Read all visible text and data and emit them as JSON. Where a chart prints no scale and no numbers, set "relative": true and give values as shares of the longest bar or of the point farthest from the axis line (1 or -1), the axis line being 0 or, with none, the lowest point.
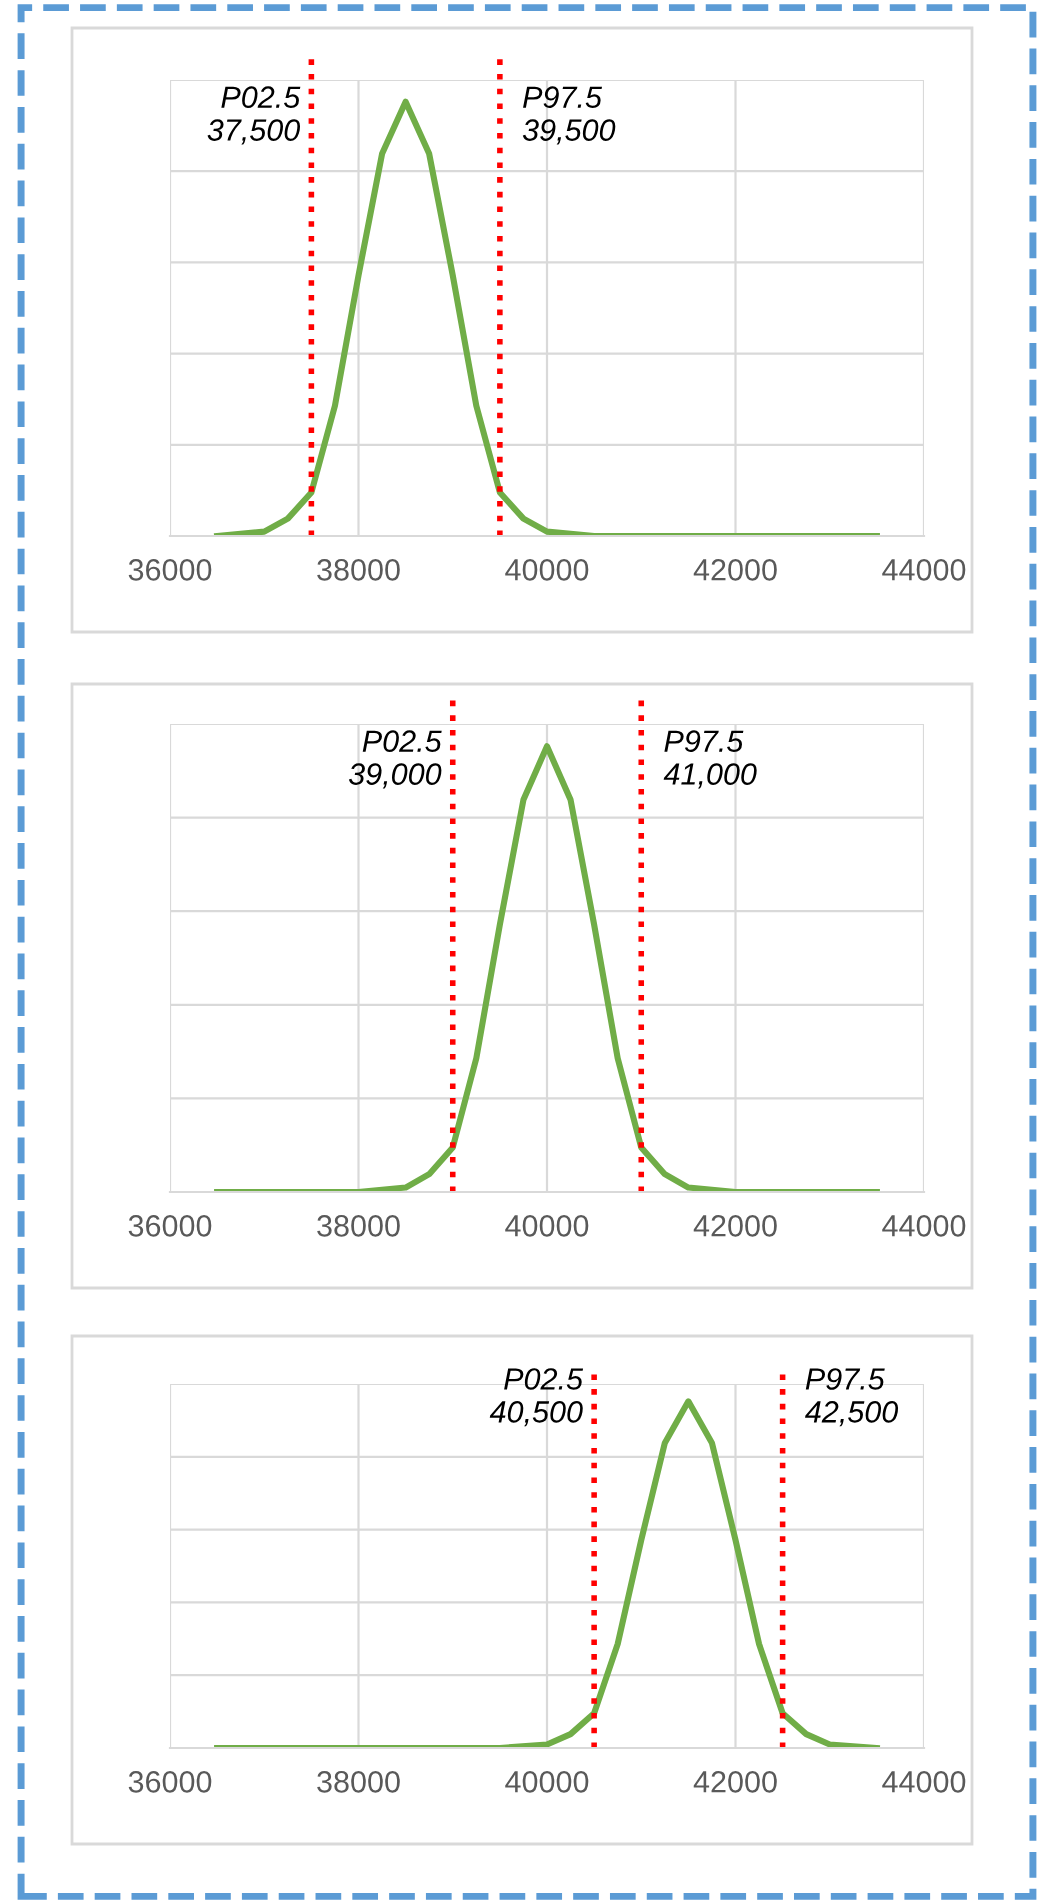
{
  "chart_data": [
    {
      "type": "line",
      "relative": true,
      "x": [
        36500,
        37000,
        37250,
        37500,
        37750,
        38000,
        38250,
        38500,
        38750,
        39000,
        39250,
        39500,
        39750,
        40000,
        40500,
        41000,
        42000,
        43000,
        43500
      ],
      "series": [
        {
          "color": "#70ad47",
          "values": [
            0,
            0.01,
            0.04,
            0.1,
            0.3,
            0.6,
            0.88,
            1,
            0.88,
            0.6,
            0.3,
            0.1,
            0.04,
            0.01,
            0,
            0,
            0,
            0,
            0
          ]
        }
      ],
      "xlim": [
        36000,
        44000
      ],
      "xticks": [
        36000,
        38000,
        40000,
        42000,
        44000
      ],
      "grid": true,
      "tick_labels": "x",
      "ref_lines": [
        {
          "axis": "x",
          "value": 37500,
          "label": "P02.5\n37,500",
          "color": "#ff0000",
          "line_style": "dotted"
        },
        {
          "axis": "x",
          "value": 39500,
          "label": "P97.5\n39,500",
          "color": "#ff0000",
          "line_style": "dotted"
        }
      ]
    },
    {
      "type": "line",
      "relative": true,
      "x": [
        36500,
        37000,
        38000,
        38500,
        38750,
        39000,
        39250,
        39500,
        39750,
        40000,
        40250,
        40500,
        40750,
        41000,
        41250,
        41500,
        42000,
        43000,
        43500
      ],
      "series": [
        {
          "color": "#70ad47",
          "values": [
            0,
            0,
            0,
            0.01,
            0.04,
            0.1,
            0.3,
            0.6,
            0.88,
            1,
            0.88,
            0.6,
            0.3,
            0.1,
            0.04,
            0.01,
            0,
            0,
            0
          ]
        }
      ],
      "xlim": [
        36000,
        44000
      ],
      "xticks": [
        36000,
        38000,
        40000,
        42000,
        44000
      ],
      "grid": true,
      "tick_labels": "x",
      "ref_lines": [
        {
          "axis": "x",
          "value": 39000,
          "label": "P02.5\n39,000",
          "color": "#ff0000",
          "line_style": "dotted"
        },
        {
          "axis": "x",
          "value": 41000,
          "label": "P97.5\n41,000",
          "color": "#ff0000",
          "line_style": "dotted"
        }
      ]
    },
    {
      "type": "line",
      "relative": true,
      "x": [
        36500,
        37000,
        38000,
        39000,
        39500,
        40000,
        40250,
        40500,
        40750,
        41000,
        41250,
        41500,
        41750,
        42000,
        42250,
        42500,
        42750,
        43000,
        43500
      ],
      "series": [
        {
          "color": "#70ad47",
          "values": [
            0,
            0,
            0,
            0,
            0,
            0.01,
            0.04,
            0.1,
            0.3,
            0.6,
            0.88,
            1,
            0.88,
            0.6,
            0.3,
            0.1,
            0.04,
            0.01,
            0
          ]
        }
      ],
      "xlim": [
        36000,
        44000
      ],
      "xticks": [
        36000,
        38000,
        40000,
        42000,
        44000
      ],
      "grid": true,
      "tick_labels": "x",
      "ref_lines": [
        {
          "axis": "x",
          "value": 40500,
          "label": "P02.5\n40,500",
          "color": "#ff0000",
          "line_style": "dotted"
        },
        {
          "axis": "x",
          "value": 42500,
          "label": "P97.5\n42,500",
          "color": "#ff0000",
          "line_style": "dotted"
        }
      ]
    }
  ]
}
